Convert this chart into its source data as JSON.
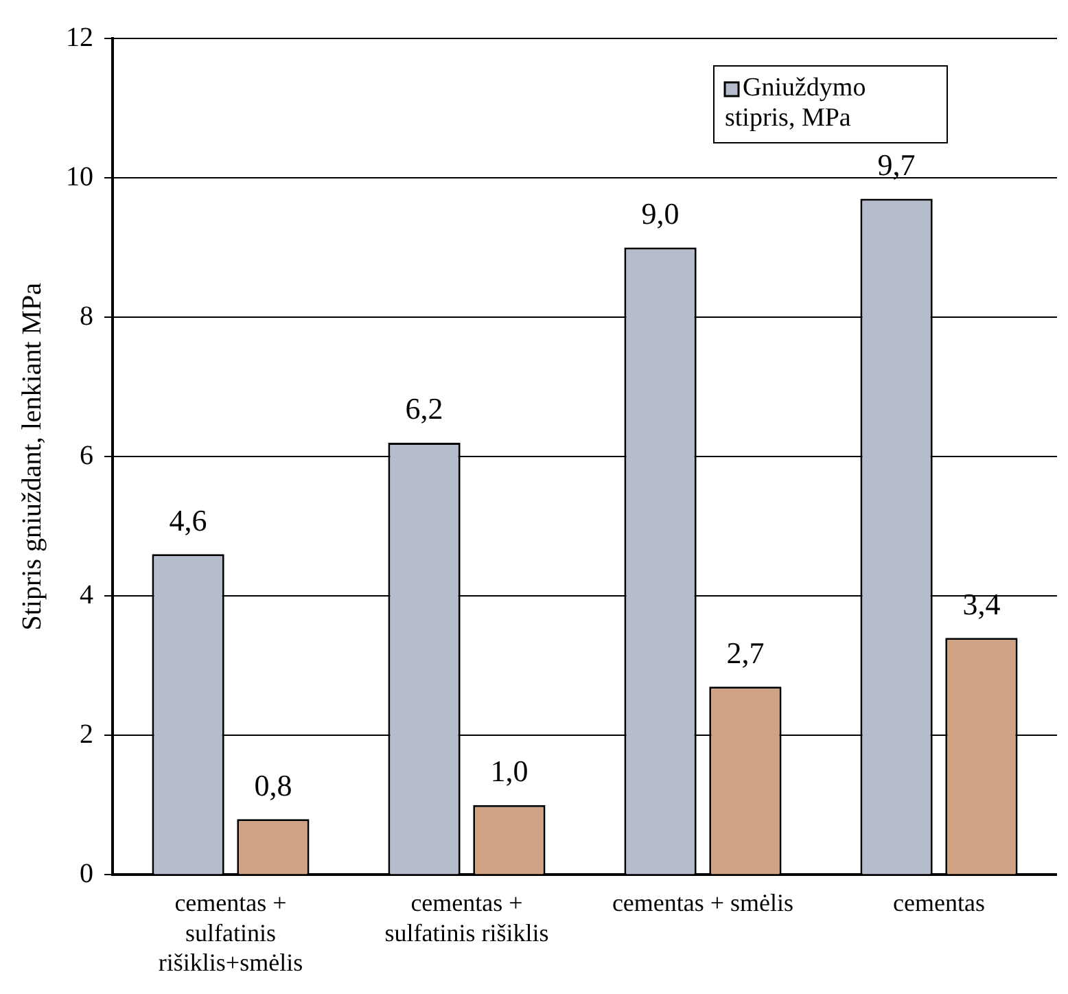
{
  "chart_data": {
    "type": "bar",
    "ylabel": "Stipris gniuždant, lenkiant MPa",
    "categories": [
      "cementas + sulfatinis rišiklis+smėlis",
      "cementas + sulfatinis rišiklis",
      "cementas + smėlis",
      "cementas"
    ],
    "series": [
      {
        "name": "Gniuždymo stipris, MPa",
        "color": "#b4bccb",
        "values": [
          4.6,
          6.2,
          9.0,
          9.7
        ],
        "value_labels": [
          "4,6",
          "6,2",
          "9,0",
          "9,7"
        ]
      },
      {
        "color": "#cfa284",
        "values": [
          0.8,
          1.0,
          2.7,
          3.4
        ],
        "value_labels": [
          "0,8",
          "1,0",
          "2,7",
          "3,4"
        ]
      }
    ],
    "ylim": [
      0,
      12
    ],
    "yticks": [
      0,
      2,
      4,
      6,
      8,
      10,
      12
    ],
    "grid": "y",
    "legend": "top right"
  }
}
